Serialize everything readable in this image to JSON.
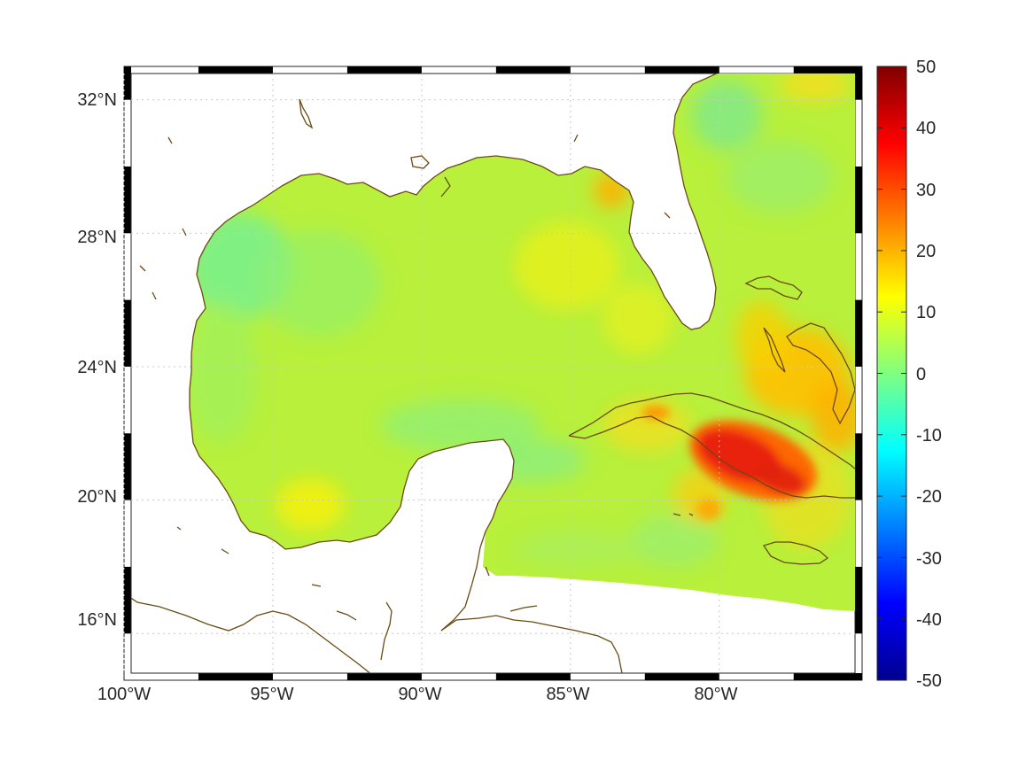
{
  "map": {
    "lon_ticks": [
      "100°W",
      "95°W",
      "90°W",
      "85°W",
      "80°W"
    ],
    "lat_ticks": [
      "32°N",
      "28°N",
      "24°N",
      "20°N",
      "16°N"
    ],
    "lon_values": [
      -100,
      -95,
      -90,
      -85,
      -80
    ],
    "lat_values": [
      32,
      28,
      24,
      20,
      16
    ],
    "extent": {
      "lon": [
        -100,
        -75.2
      ],
      "lat": [
        14.6,
        33
      ]
    },
    "colorbar": {
      "ticks": [
        "50",
        "40",
        "30",
        "20",
        "10",
        "0",
        "-10",
        "-20",
        "-30",
        "-40",
        "-50"
      ],
      "range": [
        -50,
        50
      ],
      "colormap": "jet"
    },
    "grid": true,
    "colors": {
      "coastline": "#6b4a12",
      "gulf_background": "#b8f03c",
      "hotspot": "#e02008"
    }
  }
}
